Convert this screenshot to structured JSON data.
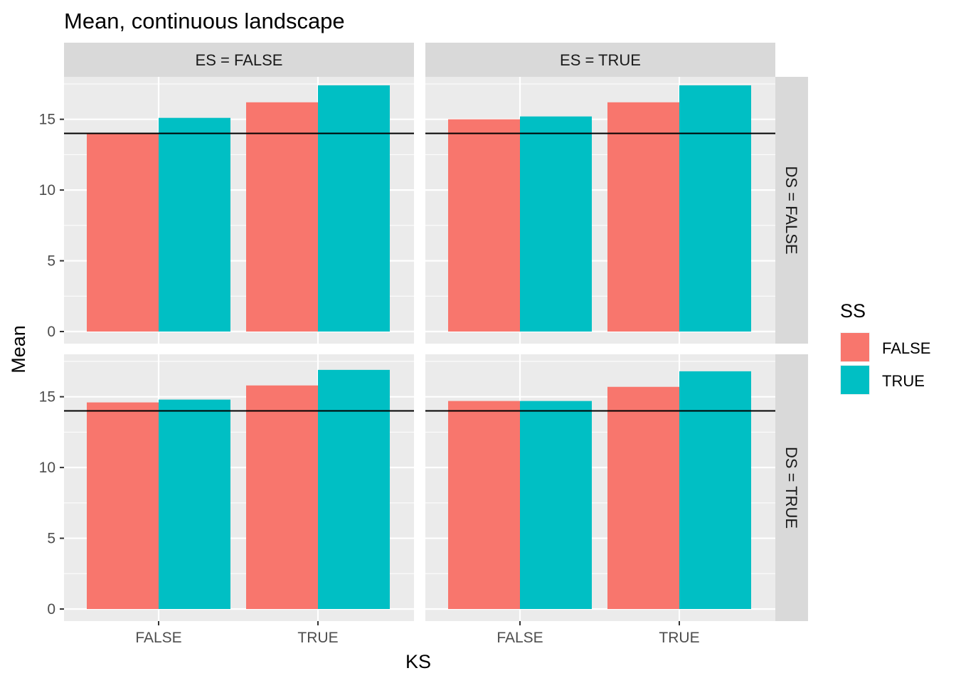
{
  "chart_data": {
    "type": "bar",
    "title": "Mean, continuous landscape",
    "xlabel": "KS",
    "ylabel": "Mean",
    "categories": [
      "FALSE",
      "TRUE"
    ],
    "ylim": [
      0,
      18
    ],
    "yticks": [
      "0",
      "5",
      "10",
      "15"
    ],
    "reference_line": 14,
    "grid": true,
    "legend": {
      "title": "SS",
      "position": "right",
      "entries": [
        {
          "name": "FALSE",
          "color": "#F8766D"
        },
        {
          "name": "TRUE",
          "color": "#00BFC4"
        }
      ]
    },
    "facet_cols": [
      "ES = FALSE",
      "ES = TRUE"
    ],
    "facet_rows": [
      "DS = FALSE",
      "DS = TRUE"
    ],
    "panels": [
      {
        "col": 0,
        "row": 0,
        "series": [
          {
            "name": "FALSE",
            "values": [
              14.0,
              16.2
            ]
          },
          {
            "name": "TRUE",
            "values": [
              15.1,
              17.4
            ]
          }
        ]
      },
      {
        "col": 1,
        "row": 0,
        "series": [
          {
            "name": "FALSE",
            "values": [
              15.0,
              16.2
            ]
          },
          {
            "name": "TRUE",
            "values": [
              15.2,
              17.4
            ]
          }
        ]
      },
      {
        "col": 0,
        "row": 1,
        "series": [
          {
            "name": "FALSE",
            "values": [
              14.6,
              15.8
            ]
          },
          {
            "name": "TRUE",
            "values": [
              14.8,
              16.9
            ]
          }
        ]
      },
      {
        "col": 1,
        "row": 1,
        "series": [
          {
            "name": "FALSE",
            "values": [
              14.7,
              15.7
            ]
          },
          {
            "name": "TRUE",
            "values": [
              14.7,
              16.8
            ]
          }
        ]
      }
    ]
  }
}
